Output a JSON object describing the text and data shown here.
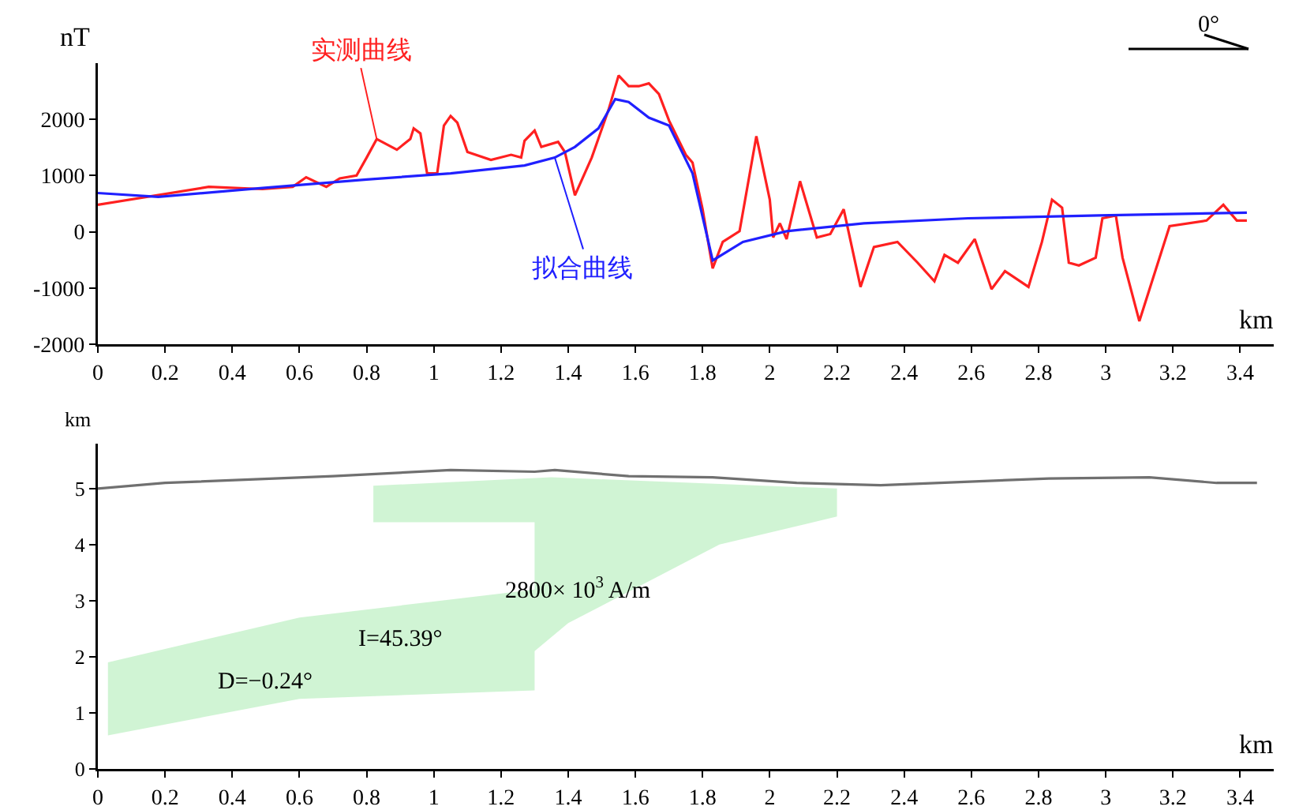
{
  "chart_data": [
    {
      "type": "line",
      "ylabel": "nT",
      "xlabel": "km",
      "annotations": [
        "0°"
      ],
      "series": [
        {
          "name": "实测曲线",
          "color": "#ff2020",
          "x": [
            0,
            0.33,
            0.49,
            0.58,
            0.62,
            0.68,
            0.72,
            0.77,
            0.8,
            0.83,
            0.89,
            0.93,
            0.94,
            0.96,
            0.98,
            1.01,
            1.03,
            1.05,
            1.07,
            1.1,
            1.17,
            1.23,
            1.26,
            1.27,
            1.3,
            1.32,
            1.37,
            1.39,
            1.42,
            1.47,
            1.52,
            1.55,
            1.58,
            1.61,
            1.64,
            1.67,
            1.7,
            1.75,
            1.77,
            1.8,
            1.83,
            1.86,
            1.91,
            1.96,
            2.0,
            2.01,
            2.03,
            2.05,
            2.09,
            2.14,
            2.18,
            2.22,
            2.27,
            2.31,
            2.38,
            2.44,
            2.49,
            2.52,
            2.56,
            2.61,
            2.66,
            2.7,
            2.77,
            2.81,
            2.84,
            2.87,
            2.89,
            2.92,
            2.97,
            2.99,
            3.03,
            3.05,
            3.1,
            3.19,
            3.3,
            3.35,
            3.39,
            3.42
          ],
          "values": [
            480,
            800,
            760,
            800,
            970,
            800,
            950,
            1000,
            1320,
            1650,
            1460,
            1650,
            1840,
            1750,
            1040,
            1040,
            1890,
            2060,
            1940,
            1420,
            1280,
            1370,
            1320,
            1620,
            1800,
            1510,
            1600,
            1420,
            650,
            1320,
            2170,
            2780,
            2590,
            2590,
            2640,
            2450,
            1980,
            1370,
            1230,
            400,
            -650,
            -180,
            10,
            1700,
            570,
            -100,
            150,
            -130,
            900,
            -100,
            -40,
            400,
            -980,
            -270,
            -180,
            -550,
            -880,
            -410,
            -550,
            -130,
            -1020,
            -700,
            -980,
            -180,
            570,
            430,
            -550,
            -600,
            -460,
            240,
            290,
            -460,
            -1590,
            100,
            200,
            480,
            200,
            200
          ]
        },
        {
          "name": "拟合曲线",
          "color": "#2020ff",
          "x": [
            0,
            0.18,
            0.49,
            0.8,
            1.05,
            1.27,
            1.36,
            1.42,
            1.49,
            1.54,
            1.58,
            1.64,
            1.7,
            1.77,
            1.83,
            1.92,
            2.05,
            2.28,
            2.59,
            2.98,
            3.42
          ],
          "values": [
            690,
            620,
            780,
            930,
            1040,
            1180,
            1320,
            1510,
            1840,
            2360,
            2310,
            2030,
            1890,
            1040,
            -510,
            -180,
            10,
            150,
            240,
            290,
            340
          ]
        }
      ],
      "xlim": [
        0,
        3.5
      ],
      "xticks": [
        0,
        0.2,
        0.4,
        0.6,
        0.8,
        1,
        1.2,
        1.4,
        1.6,
        1.8,
        2,
        2.2,
        2.4,
        2.6,
        2.8,
        3,
        3.2,
        3.4
      ],
      "ylim": [
        -2000,
        3000
      ],
      "yticks": [
        -2000,
        -1000,
        0,
        1000,
        2000
      ],
      "grid": false,
      "legend": false,
      "marker": "none",
      "line_style": "solid"
    },
    {
      "type": "line",
      "ylabel": "km",
      "xlabel": "km",
      "annotations": [
        "2800× 10$^{3}$ A/m",
        "I=45.39°",
        "D=−0.24°"
      ],
      "series": [
        {
          "color": "#707070",
          "x": [
            0,
            0.2,
            0.7,
            1.05,
            1.3,
            1.36,
            1.58,
            1.83,
            2.08,
            2.33,
            2.83,
            3.13,
            3.33,
            3.45
          ],
          "values": [
            5.0,
            5.1,
            5.22,
            5.33,
            5.3,
            5.33,
            5.22,
            5.2,
            5.1,
            5.06,
            5.18,
            5.2,
            5.1,
            5.1
          ]
        }
      ],
      "xlim": [
        0,
        3.5
      ],
      "xticks": [
        0,
        0.2,
        0.4,
        0.6,
        0.8,
        1,
        1.2,
        1.4,
        1.6,
        1.8,
        2,
        2.2,
        2.4,
        2.6,
        2.8,
        3,
        3.2,
        3.4
      ],
      "ylim": [
        0,
        5.8
      ],
      "yticks": [
        0,
        1,
        2,
        3,
        4,
        5
      ],
      "grid": false,
      "legend": false,
      "marker": "none",
      "line_style": "solid"
    }
  ]
}
